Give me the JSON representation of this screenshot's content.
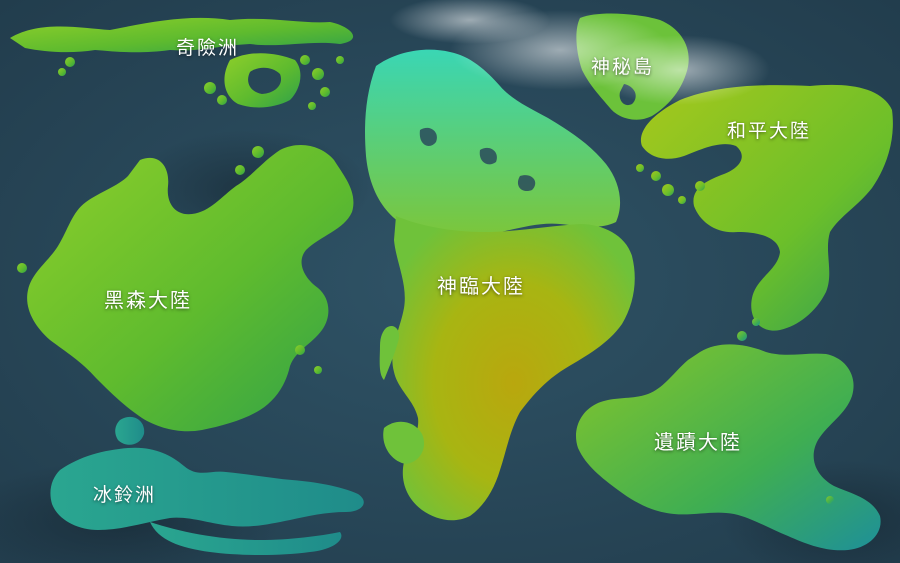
{
  "map": {
    "ocean_color": "#2a4a5c",
    "regions": [
      {
        "id": "qixian",
        "name": "奇險洲"
      },
      {
        "id": "shenmi",
        "name": "神秘島"
      },
      {
        "id": "heping",
        "name": "和平大陸"
      },
      {
        "id": "heisen",
        "name": "黑森大陸"
      },
      {
        "id": "shenlin",
        "name": "神臨大陸"
      },
      {
        "id": "yiji",
        "name": "遺蹟大陸"
      },
      {
        "id": "bingling",
        "name": "冰鈴洲"
      }
    ]
  }
}
